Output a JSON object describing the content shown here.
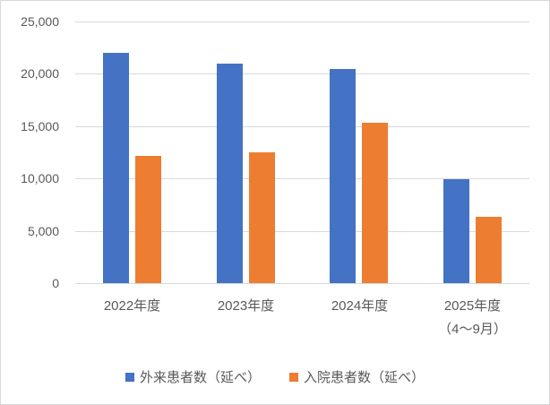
{
  "chart_data": {
    "type": "bar",
    "title": "",
    "xlabel": "",
    "ylabel": "",
    "categories": [
      "2022年度",
      "2023年度",
      "2024年度",
      "2025年度"
    ],
    "category_sublabels": [
      "",
      "",
      "",
      "（4～9月）"
    ],
    "series": [
      {
        "name": "外来患者数（延べ）",
        "color": "#4472C4",
        "values": [
          22000,
          21000,
          20500,
          9900
        ]
      },
      {
        "name": "入院患者数（延べ）",
        "color": "#ED7D31",
        "values": [
          12200,
          12500,
          15300,
          6300
        ]
      }
    ],
    "ylim": [
      0,
      25000
    ],
    "ytick_interval": 5000,
    "ytick_labels": [
      "0",
      "5,000",
      "10,000",
      "15,000",
      "20,000",
      "25,000"
    ],
    "grid": "horizontal",
    "legend_position": "bottom"
  },
  "colors": {
    "background": "#FFFFFF",
    "border": "#D9D9D9",
    "gridline": "#D9D9D9",
    "axis_text": "#595959",
    "series_blue": "#4472C4",
    "series_orange": "#ED7D31"
  }
}
